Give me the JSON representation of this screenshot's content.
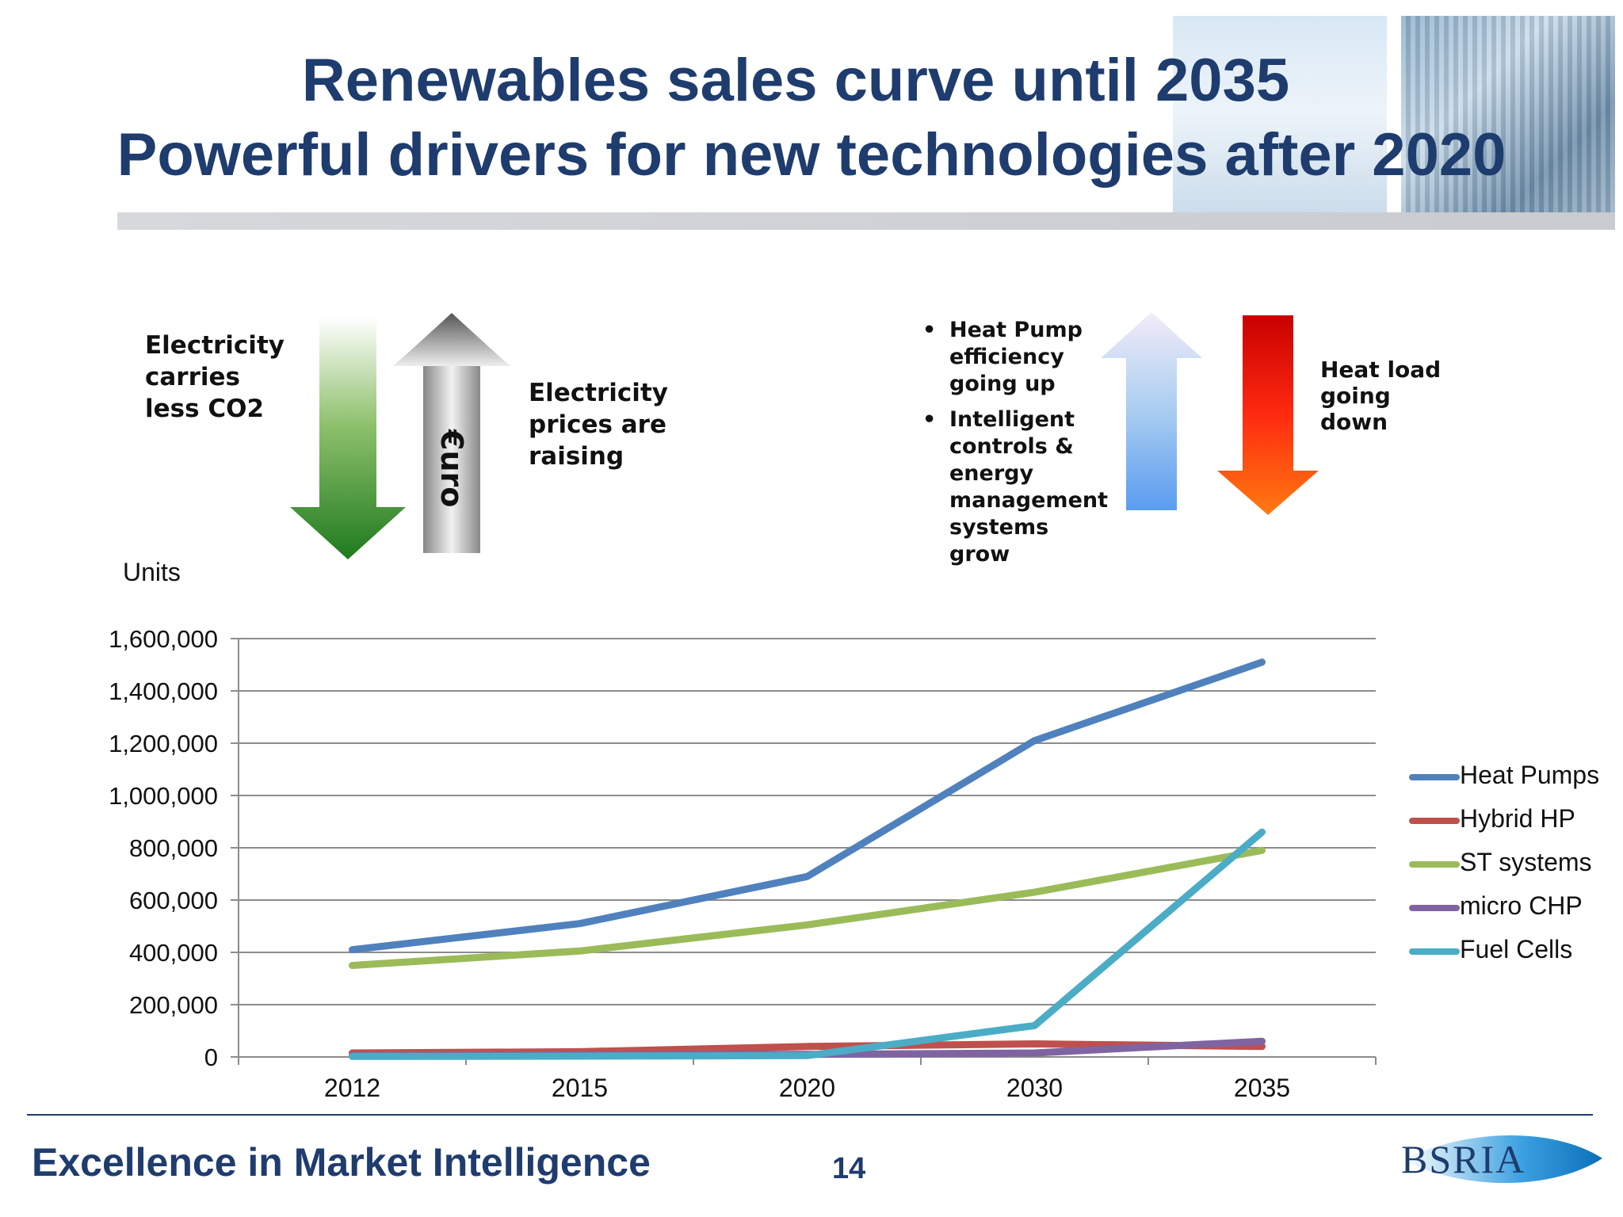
{
  "slide": {
    "title_line1": "Renewables sales curve until 2035",
    "title_line2": "Powerful drivers for new technologies after 2020",
    "footer_text": "Excellence in Market Intelligence",
    "page_number": "14",
    "logo_text": "BSRIA",
    "title_color": "#1f3c6e"
  },
  "drivers": {
    "left_note": [
      "Electricity",
      "carries",
      "less CO2"
    ],
    "euro_label": "€uro",
    "price_note": [
      "Electricity",
      "prices are",
      "raising"
    ],
    "bullets": [
      [
        "Heat Pump",
        "efficiency",
        "going up"
      ],
      [
        "Intelligent",
        "controls &",
        "energy",
        "management",
        "systems",
        "grow"
      ]
    ],
    "heat_load_note": [
      "Heat load",
      "going",
      "down"
    ]
  },
  "chart_data": {
    "type": "line",
    "ylabel": "Units",
    "categories": [
      "2012",
      "2015",
      "2020",
      "2030",
      "2035"
    ],
    "ylim": [
      0,
      1600000
    ],
    "yticks": [
      0,
      200000,
      400000,
      600000,
      800000,
      1000000,
      1200000,
      1400000,
      1600000
    ],
    "ytick_labels": [
      "0",
      "200,000",
      "400,000",
      "600,000",
      "800,000",
      "1,000,000",
      "1,200,000",
      "1,400,000",
      "1,600,000"
    ],
    "grid": true,
    "legend": "right",
    "series": [
      {
        "name": "Heat Pumps",
        "color": "#4f81bd",
        "values": [
          410000,
          510000,
          690000,
          1210000,
          1510000
        ]
      },
      {
        "name": "Hybrid HP",
        "color": "#c0504d",
        "values": [
          15000,
          20000,
          40000,
          50000,
          40000
        ]
      },
      {
        "name": "ST systems",
        "color": "#9bbb59",
        "values": [
          350000,
          405000,
          505000,
          630000,
          790000
        ]
      },
      {
        "name": "micro CHP",
        "color": "#8064a2",
        "values": [
          5000,
          8000,
          10000,
          15000,
          60000
        ]
      },
      {
        "name": "Fuel Cells",
        "color": "#4bacc6",
        "values": [
          2000,
          3000,
          5000,
          120000,
          860000
        ]
      }
    ]
  }
}
